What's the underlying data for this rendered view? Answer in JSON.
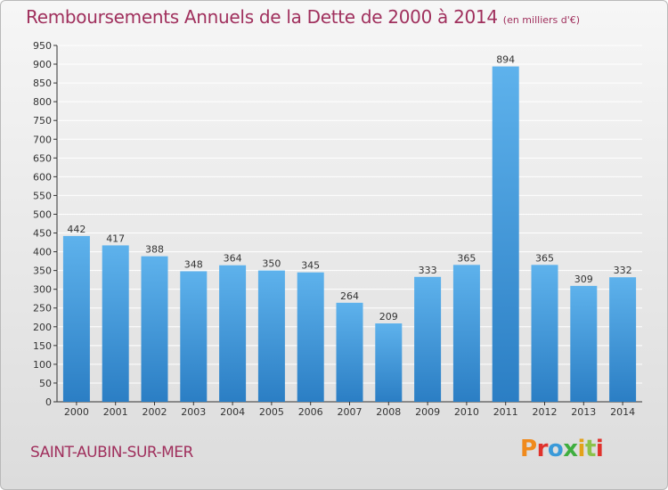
{
  "page": {
    "title": "Remboursements Annuels de la Dette de 2000 à 2014",
    "subtitle": "(en milliers d'€)",
    "location": "SAINT-AUBIN-SUR-MER",
    "logo_text": "Proxiti"
  },
  "colors": {
    "title": "#a0305d",
    "bar_light": "#5eb2ec",
    "bar_dark": "#2b7ec4",
    "grid": "#ffffff",
    "logo_letters": [
      "#f08a1c",
      "#e0322c",
      "#3a9ad9",
      "#3fae3f",
      "#e3a21a",
      "#8bc34a",
      "#e0322c"
    ]
  },
  "chart_data": {
    "type": "bar",
    "categories": [
      "2000",
      "2001",
      "2002",
      "2003",
      "2004",
      "2005",
      "2006",
      "2007",
      "2008",
      "2009",
      "2010",
      "2011",
      "2012",
      "2013",
      "2014"
    ],
    "values": [
      442,
      417,
      388,
      348,
      364,
      350,
      345,
      264,
      209,
      333,
      365,
      894,
      365,
      309,
      332
    ],
    "title": "Remboursements Annuels de la Dette de 2000 à 2014",
    "subtitle": "(en milliers d'€)",
    "ylim": [
      0,
      950
    ],
    "yticks": [
      0,
      50,
      100,
      150,
      200,
      250,
      300,
      350,
      400,
      450,
      500,
      550,
      600,
      650,
      700,
      750,
      800,
      850,
      900,
      950
    ],
    "grid": true,
    "data_labels": true,
    "legend": "none"
  }
}
